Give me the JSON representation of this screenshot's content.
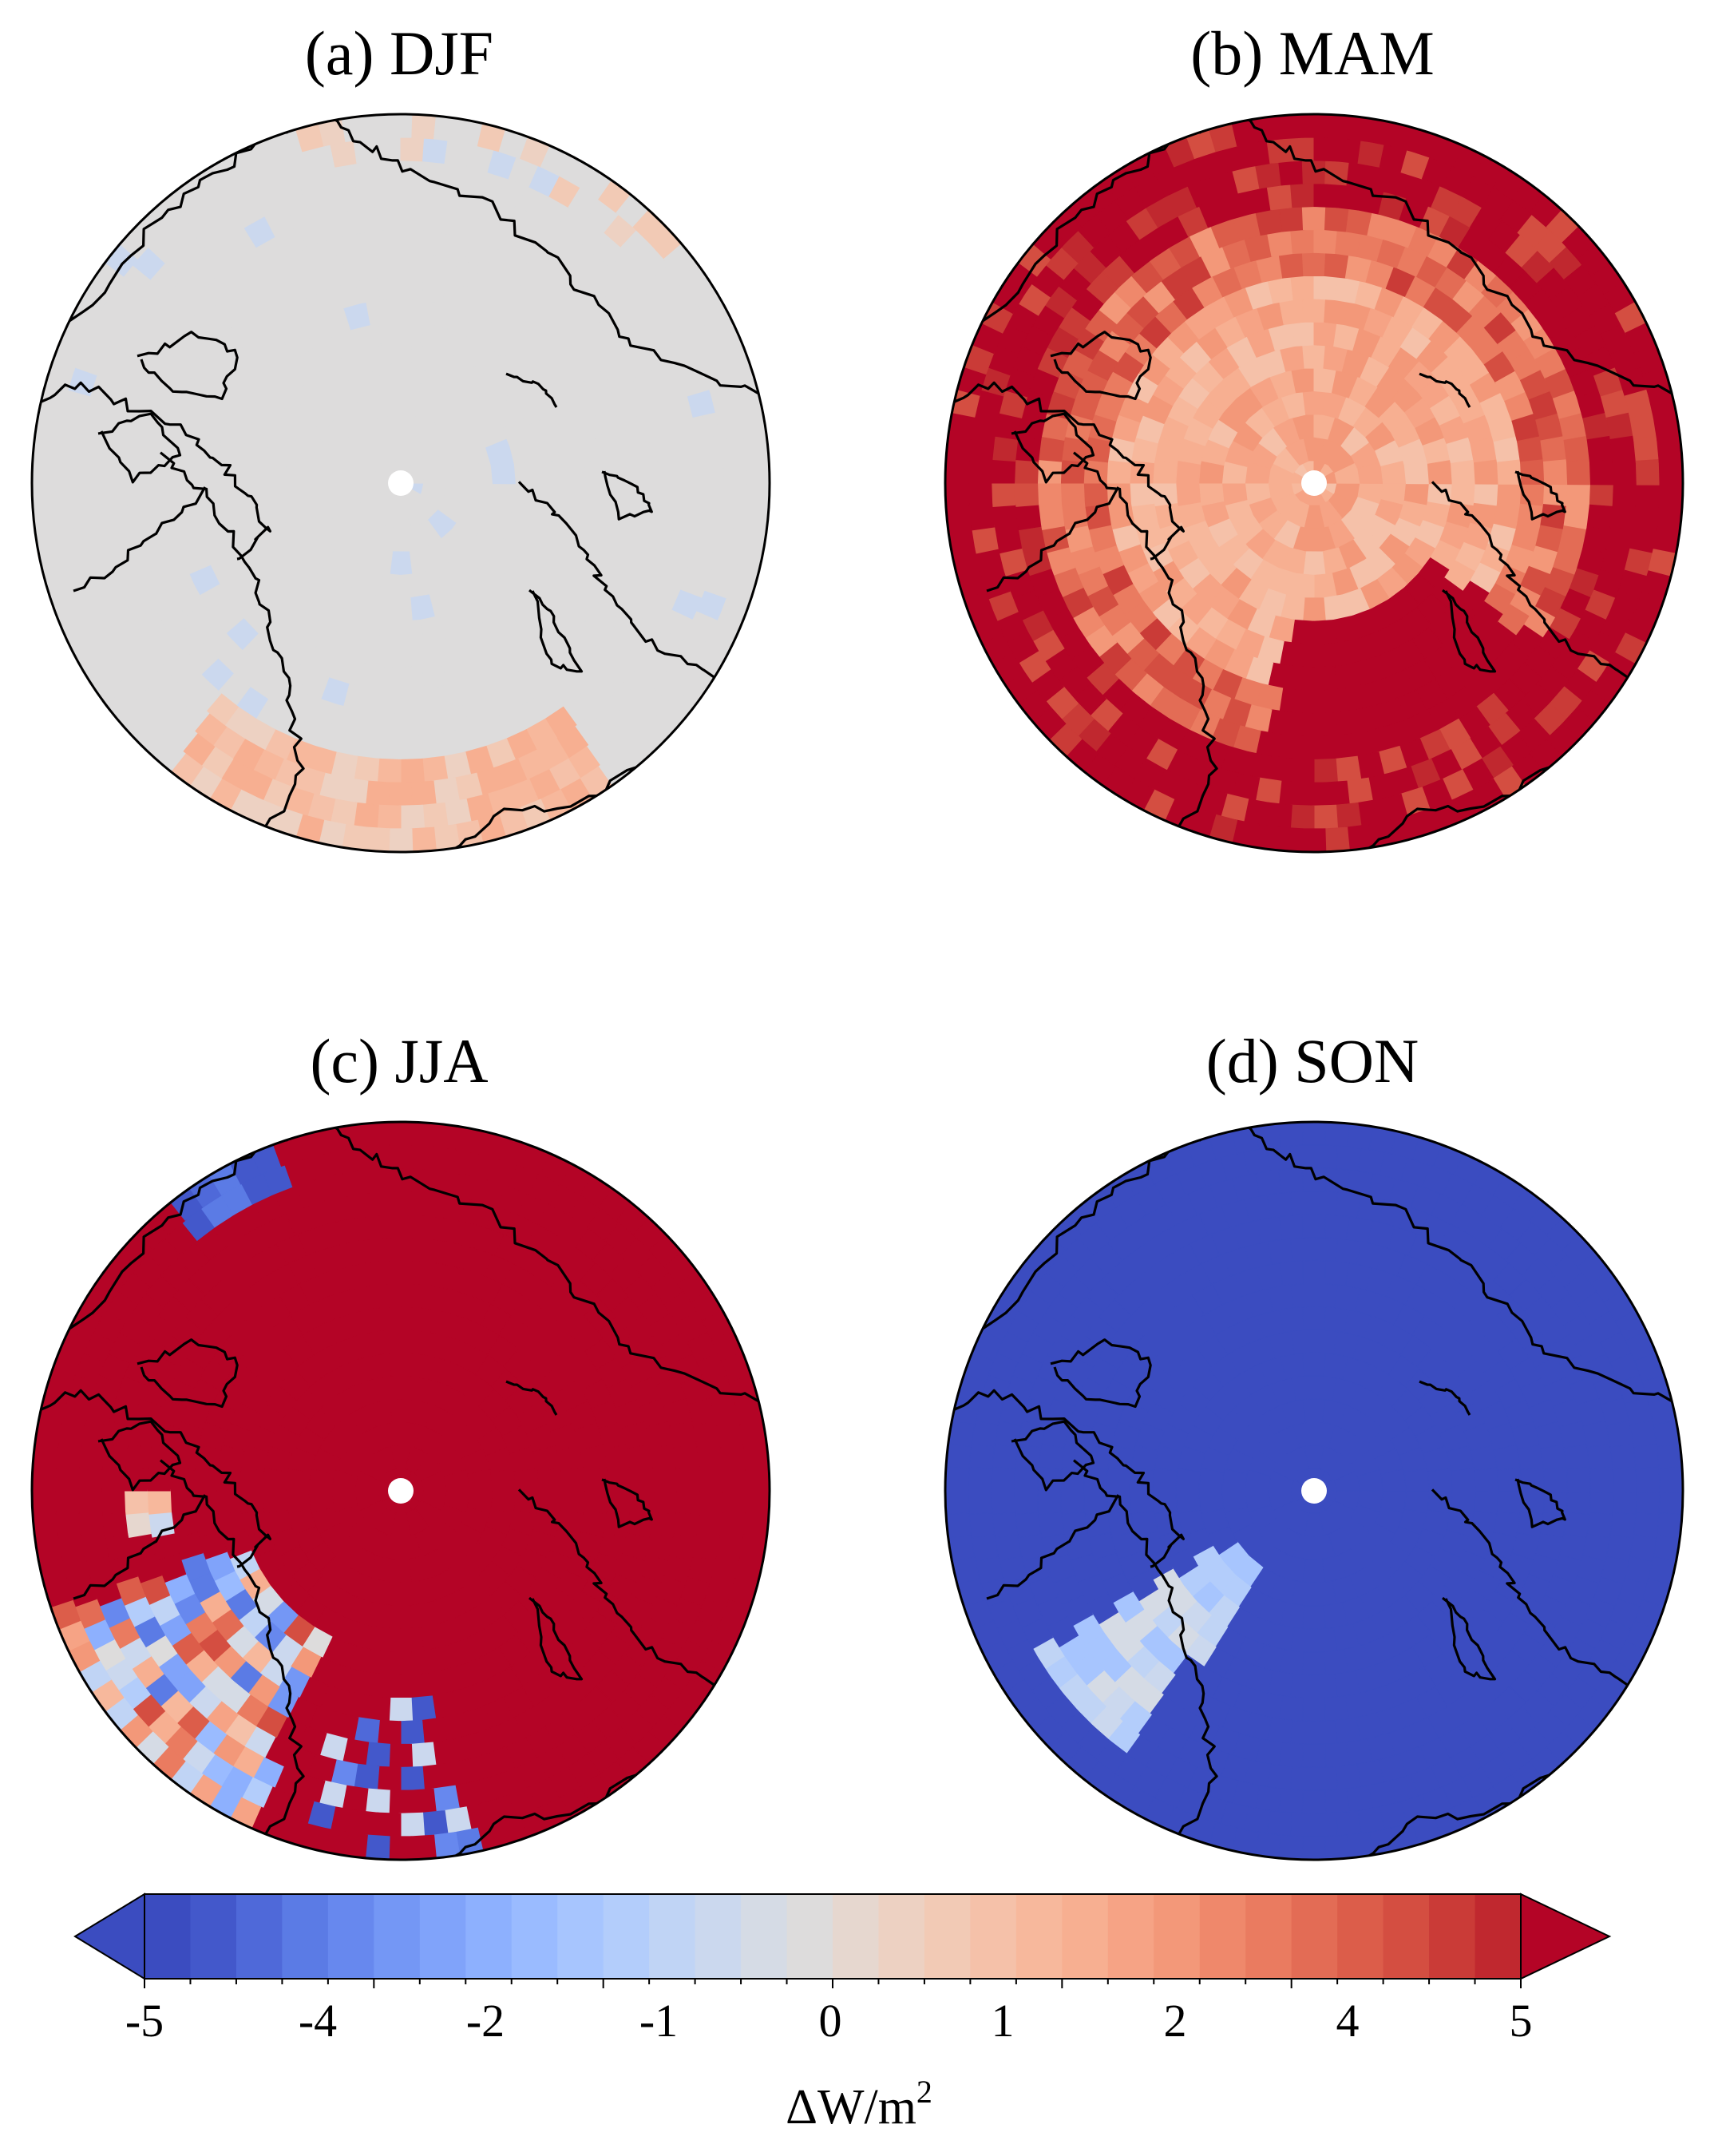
{
  "panels": [
    {
      "id": "a",
      "title": "(a) DJF",
      "field": "neutral"
    },
    {
      "id": "b",
      "title": "(b) MAM",
      "field": "warm"
    },
    {
      "id": "c",
      "title": "(c) JJA",
      "field": "hot"
    },
    {
      "id": "d",
      "title": "(d) SON",
      "field": "cold"
    }
  ],
  "colorbar": {
    "ticks": [
      "-5",
      "-4",
      "-2",
      "-1",
      "0",
      "1",
      "2",
      "4",
      "5"
    ],
    "label_main": "ΔW/m",
    "label_sup": "2",
    "extend": "both",
    "colors": [
      "#3b4cc0",
      "#4358cb",
      "#4f69d9",
      "#5b7be5",
      "#6788ee",
      "#7497f5",
      "#80a3fa",
      "#8db0fe",
      "#9abbff",
      "#a7c5fe",
      "#b3cdfb",
      "#c0d4f5",
      "#cbd8ee",
      "#d5dbe5",
      "#dddcdc",
      "#e6d7cf",
      "#edd1c2",
      "#f2cab5",
      "#f5c1a9",
      "#f7b89c",
      "#f7af91",
      "#f6a385",
      "#f39879",
      "#ef886b",
      "#ea7b60",
      "#e36c55",
      "#dc5d4a",
      "#d44e41",
      "#ca3b37",
      "#c0282f"
    ],
    "under_color": "#3b4cc0",
    "over_color": "#b40426"
  },
  "legend_colors": {
    "neutral": "#dddcdc",
    "hot": "#b40426",
    "cold": "#3b4cc0",
    "land_outline": "#000000"
  }
}
